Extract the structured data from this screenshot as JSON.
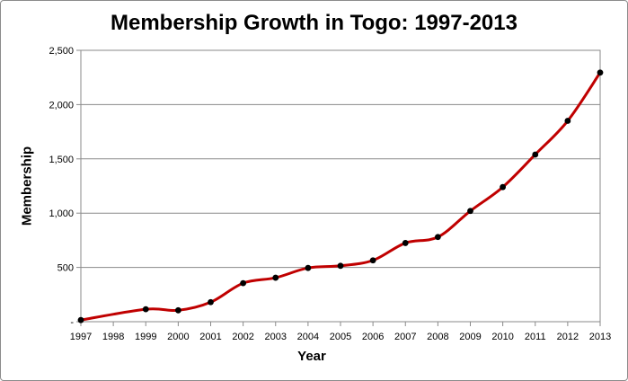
{
  "chart_data": {
    "type": "line",
    "title": "Membership Growth in Togo: 1997-2013",
    "xlabel": "Year",
    "ylabel": "Membership",
    "x": [
      "1997",
      "1998",
      "1999",
      "2000",
      "2001",
      "2002",
      "2003",
      "2004",
      "2005",
      "2006",
      "2007",
      "2008",
      "2009",
      "2010",
      "2011",
      "2012",
      "2013"
    ],
    "series": [
      {
        "values": [
          15,
          null,
          115,
          105,
          180,
          355,
          405,
          495,
          515,
          565,
          725,
          780,
          1020,
          1240,
          1540,
          1850,
          2295
        ]
      }
    ],
    "yticks": [
      {
        "value": 0,
        "label": "-"
      },
      {
        "value": 500,
        "label": "500"
      },
      {
        "value": 1000,
        "label": "1,000"
      },
      {
        "value": 1500,
        "label": "1,500"
      },
      {
        "value": 2000,
        "label": "2,000"
      },
      {
        "value": 2500,
        "label": "2,500"
      }
    ],
    "ylim": [
      0,
      2500
    ],
    "grid": true,
    "line_color": "#c00000",
    "marker_color": "#000000"
  }
}
